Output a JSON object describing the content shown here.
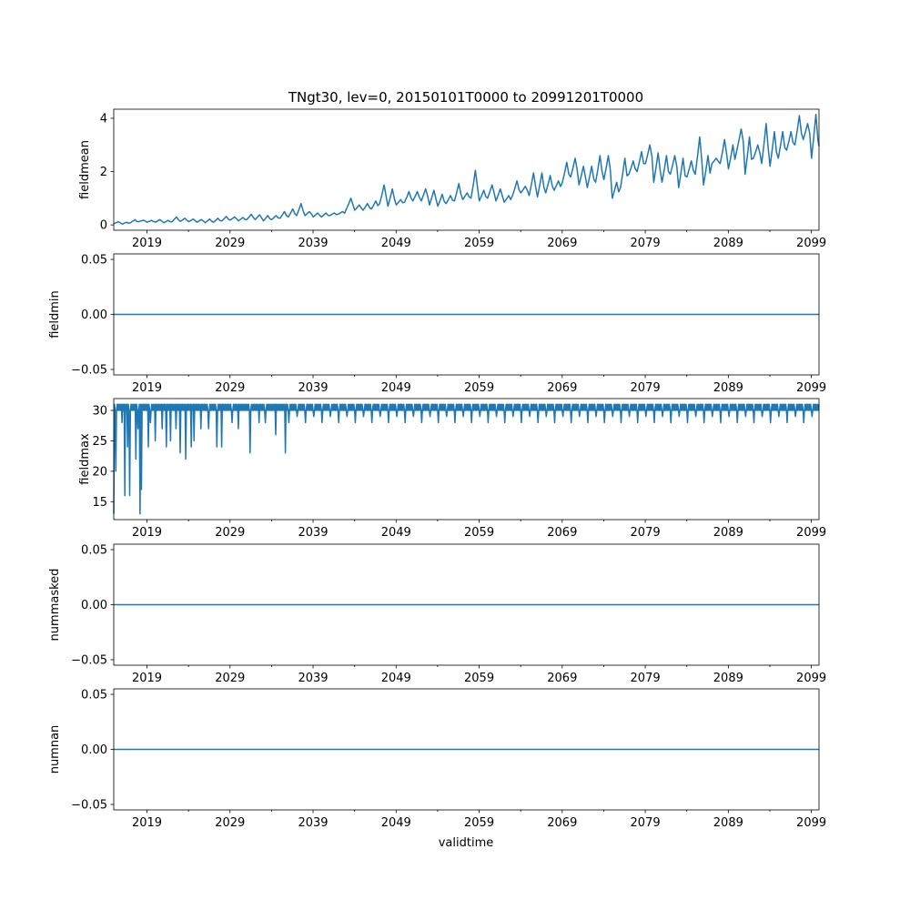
{
  "chart_data": {
    "type": "line",
    "title": "TNgt30, lev=0, 20150101T0000 to 20991201T0000",
    "xlabel": "validtime",
    "xlim": [
      2015.0,
      2099.92
    ],
    "xtick_labels": [
      "2019",
      "2029",
      "2039",
      "2049",
      "2059",
      "2069",
      "2079",
      "2089",
      "2099"
    ],
    "color": "#1f77b4",
    "panels": [
      {
        "ylabel": "fieldmean",
        "ylim": [
          -0.2,
          4.34
        ],
        "ytick_labels": [
          "0",
          "2",
          "4"
        ],
        "yticks": [
          0,
          2,
          4
        ],
        "kind": "annual_trough_peak",
        "start_year": 2015,
        "values": [
          [
            0.05,
            0.12
          ],
          [
            0.03,
            0.1
          ],
          [
            0.08,
            0.2
          ],
          [
            0.12,
            0.18
          ],
          [
            0.1,
            0.17
          ],
          [
            0.1,
            0.2
          ],
          [
            0.08,
            0.17
          ],
          [
            0.12,
            0.3
          ],
          [
            0.13,
            0.25
          ],
          [
            0.12,
            0.22
          ],
          [
            0.1,
            0.2
          ],
          [
            0.08,
            0.22
          ],
          [
            0.1,
            0.25
          ],
          [
            0.15,
            0.32
          ],
          [
            0.18,
            0.3
          ],
          [
            0.15,
            0.28
          ],
          [
            0.2,
            0.4
          ],
          [
            0.2,
            0.38
          ],
          [
            0.15,
            0.35
          ],
          [
            0.2,
            0.35
          ],
          [
            0.25,
            0.5
          ],
          [
            0.3,
            0.6
          ],
          [
            0.35,
            0.8
          ],
          [
            0.35,
            0.5
          ],
          [
            0.3,
            0.45
          ],
          [
            0.3,
            0.45
          ],
          [
            0.35,
            0.45
          ],
          [
            0.4,
            0.5
          ],
          [
            0.6,
            1.0
          ],
          [
            0.55,
            0.75
          ],
          [
            0.55,
            0.8
          ],
          [
            0.6,
            0.9
          ],
          [
            0.8,
            1.5
          ],
          [
            0.7,
            1.35
          ],
          [
            0.75,
            0.95
          ],
          [
            0.85,
            1.25
          ],
          [
            0.9,
            1.25
          ],
          [
            0.9,
            1.35
          ],
          [
            0.75,
            1.3
          ],
          [
            0.7,
            1.15
          ],
          [
            0.8,
            1.1
          ],
          [
            0.9,
            1.55
          ],
          [
            0.95,
            1.2
          ],
          [
            1.0,
            2.05
          ],
          [
            0.9,
            1.3
          ],
          [
            1.0,
            1.5
          ],
          [
            0.9,
            1.35
          ],
          [
            0.85,
            1.1
          ],
          [
            1.1,
            1.65
          ],
          [
            1.2,
            1.45
          ],
          [
            1.1,
            1.95
          ],
          [
            1.05,
            1.95
          ],
          [
            1.2,
            1.85
          ],
          [
            1.3,
            1.65
          ],
          [
            1.6,
            2.35
          ],
          [
            1.8,
            2.5
          ],
          [
            1.5,
            2.2
          ],
          [
            1.4,
            2.2
          ],
          [
            1.6,
            2.6
          ],
          [
            1.7,
            2.6
          ],
          [
            1.0,
            1.6
          ],
          [
            1.4,
            2.5
          ],
          [
            1.9,
            2.4
          ],
          [
            2.0,
            2.75
          ],
          [
            2.3,
            3.0
          ],
          [
            1.6,
            2.7
          ],
          [
            1.6,
            2.6
          ],
          [
            1.9,
            2.6
          ],
          [
            1.4,
            2.5
          ],
          [
            1.8,
            2.4
          ],
          [
            1.9,
            3.3
          ],
          [
            1.5,
            2.6
          ],
          [
            2.3,
            2.5
          ],
          [
            2.3,
            3.2
          ],
          [
            2.1,
            3.0
          ],
          [
            2.8,
            3.6
          ],
          [
            1.9,
            3.3
          ],
          [
            2.5,
            3.0
          ],
          [
            2.3,
            3.8
          ],
          [
            2.2,
            3.5
          ],
          [
            2.5,
            3.5
          ],
          [
            2.8,
            3.5
          ],
          [
            3.0,
            4.1
          ],
          [
            3.2,
            3.8
          ],
          [
            2.5,
            4.15
          ]
        ],
        "end_value": 2.95
      },
      {
        "ylabel": "fieldmin",
        "ylim": [
          -0.055,
          0.055
        ],
        "ytick_labels": [
          "0.05",
          "0.00",
          "−0.05"
        ],
        "yticks": [
          0.05,
          0,
          -0.05
        ],
        "kind": "constant",
        "value": 0
      },
      {
        "ylabel": "fieldmax",
        "ylim": [
          12.05,
          31.95
        ],
        "ytick_labels": [
          "30",
          "25",
          "20",
          "15"
        ],
        "yticks": [
          30,
          25,
          20,
          15
        ],
        "kind": "band_with_dips",
        "band": [
          30,
          31
        ],
        "dips": [
          [
            2015.0,
            13
          ],
          [
            2015.2,
            20
          ],
          [
            2016.0,
            28
          ],
          [
            2016.3,
            16
          ],
          [
            2016.6,
            24
          ],
          [
            2016.9,
            16
          ],
          [
            2017.6,
            22
          ],
          [
            2017.9,
            27
          ],
          [
            2018.1,
            13
          ],
          [
            2018.3,
            17
          ],
          [
            2019.1,
            24
          ],
          [
            2019.4,
            28
          ],
          [
            2020.0,
            25
          ],
          [
            2020.8,
            27
          ],
          [
            2021.3,
            24
          ],
          [
            2021.8,
            25
          ],
          [
            2022.5,
            27
          ],
          [
            2023.0,
            23
          ],
          [
            2023.6,
            22
          ],
          [
            2024.3,
            24
          ],
          [
            2024.6,
            25
          ],
          [
            2025.5,
            27
          ],
          [
            2026.4,
            27
          ],
          [
            2027.4,
            24
          ],
          [
            2028.0,
            24
          ],
          [
            2029.2,
            28
          ],
          [
            2030.0,
            27
          ],
          [
            2031.4,
            23
          ],
          [
            2032.5,
            28
          ],
          [
            2033.2,
            28
          ],
          [
            2034.5,
            26
          ],
          [
            2035.6,
            23
          ]
        ],
        "annual_dip_from": 2036,
        "annual_dip_values": [
          28,
          29
        ]
      },
      {
        "ylabel": "nummasked",
        "ylim": [
          -0.055,
          0.055
        ],
        "ytick_labels": [
          "0.05",
          "0.00",
          "−0.05"
        ],
        "yticks": [
          0.05,
          0,
          -0.05
        ],
        "kind": "constant",
        "value": 0
      },
      {
        "ylabel": "numnan",
        "ylim": [
          -0.055,
          0.055
        ],
        "ytick_labels": [
          "0.05",
          "0.00",
          "−0.05"
        ],
        "yticks": [
          0.05,
          0,
          -0.05
        ],
        "kind": "constant",
        "value": 0
      }
    ]
  }
}
